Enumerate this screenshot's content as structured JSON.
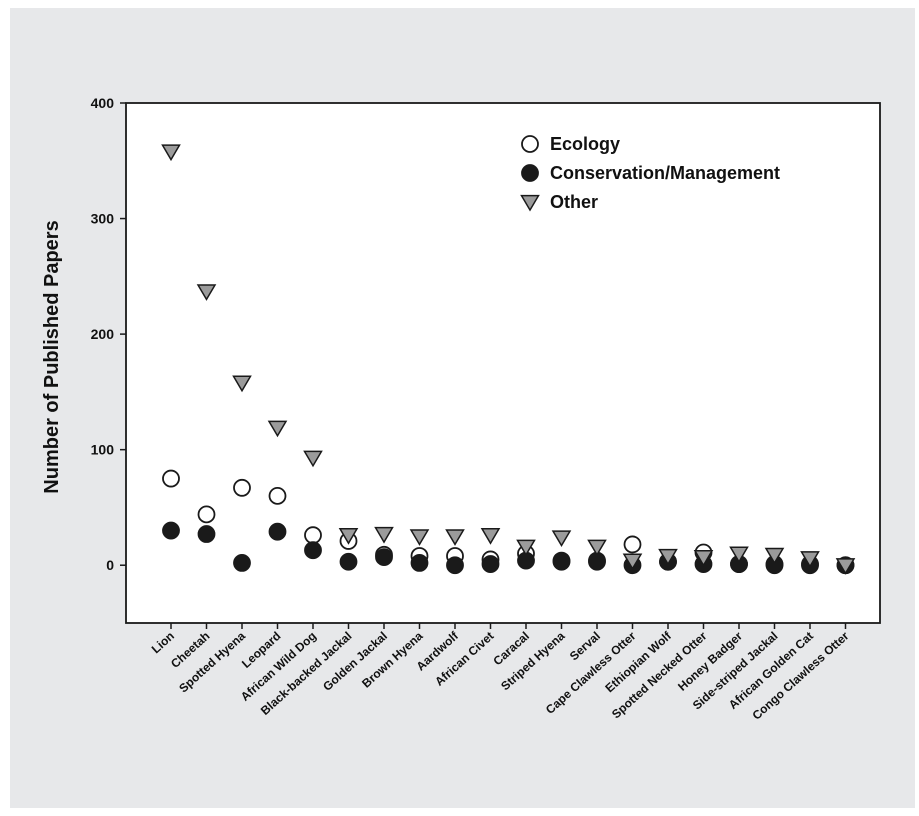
{
  "chart_data": {
    "type": "scatter",
    "title": "",
    "xlabel": "",
    "ylabel": "Number of Published Papers",
    "ylim": [
      -50,
      400
    ],
    "yticks": [
      0,
      100,
      200,
      300,
      400
    ],
    "grid": false,
    "legend_position": "top-right",
    "categories": [
      "Lion",
      "Cheetah",
      "Spotted Hyena",
      "Leopard",
      "African Wild Dog",
      "Black-backed Jackal",
      "Golden Jackal",
      "Brown Hyena",
      "Aardwolf",
      "African Civet",
      "Caracal",
      "Striped Hyena",
      "Serval",
      "Cape Clawless Otter",
      "Ethiopian Wolf",
      "Spotted Necked Otter",
      "Honey Badger",
      "Side-striped Jackal",
      "African Golden Cat",
      "Congo Clawless Otter"
    ],
    "series": [
      {
        "name": "Ecology",
        "marker": "open-circle",
        "color": "#ffffff",
        "values": [
          75,
          44,
          67,
          60,
          26,
          21,
          9,
          8,
          8,
          5,
          10,
          4,
          3,
          18,
          3,
          11,
          1,
          1,
          1,
          0
        ]
      },
      {
        "name": "Conservation/Management",
        "marker": "filled-circle",
        "color": "#1a1a1a",
        "values": [
          30,
          27,
          2,
          29,
          13,
          3,
          7,
          2,
          0,
          1,
          4,
          3,
          4,
          0,
          3,
          1,
          1,
          0,
          0,
          0
        ]
      },
      {
        "name": "Other",
        "marker": "down-triangle",
        "color": "#9b9b9b",
        "values": [
          358,
          237,
          158,
          119,
          93,
          26,
          27,
          25,
          25,
          26,
          16,
          24,
          16,
          4,
          8,
          7,
          10,
          9,
          6,
          0
        ]
      }
    ]
  }
}
